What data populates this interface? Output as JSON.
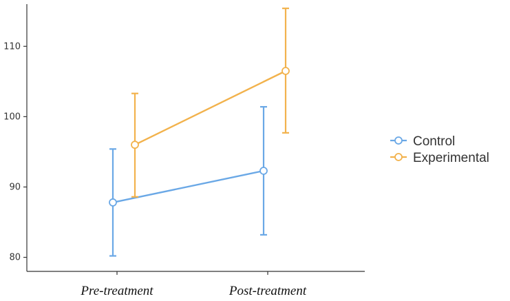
{
  "chart_data": {
    "type": "line",
    "categories": [
      "Pre-treatment",
      "Post-treatment"
    ],
    "ylim": [
      78,
      116
    ],
    "y_ticks": [
      "80",
      "90",
      "100",
      "110"
    ],
    "grid": false,
    "legend_position": "right",
    "series": [
      {
        "name": "Control",
        "color": "#6aa8e6",
        "values": [
          87.8,
          92.3
        ],
        "error_low": [
          80.2,
          83.2
        ],
        "error_high": [
          95.4,
          101.4
        ]
      },
      {
        "name": "Experimental",
        "color": "#f2b24c",
        "values": [
          96.0,
          106.5
        ],
        "error_low": [
          88.6,
          97.7
        ],
        "error_high": [
          103.3,
          115.4
        ]
      }
    ]
  }
}
